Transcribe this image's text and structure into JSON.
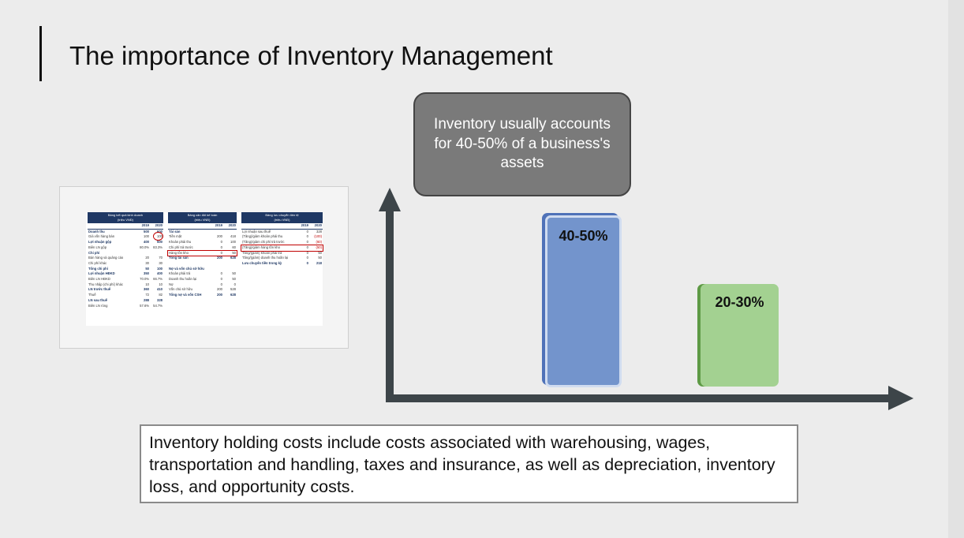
{
  "slide": {
    "title": "The importance of Inventory Management",
    "callout": "Inventory usually accounts for 40-50% of a business's assets",
    "bars": [
      {
        "label": "40-50%",
        "color": "#7394cc"
      },
      {
        "label": "20-30%",
        "color": "#a3d191"
      }
    ],
    "note": "Inventory holding costs include costs associated with warehousing, wages, transportation and handling, taxes and insurance, as well as depreciation, inventory loss, and opportunity costs."
  },
  "spreadsheet": {
    "income": {
      "title": "Bảng kết quả kinh doanh",
      "unit": "(triệu VNĐ)",
      "years": [
        "2019",
        "2020"
      ],
      "rows": [
        {
          "label": "Doanh thu",
          "a": "500",
          "b": "600",
          "bold": true
        },
        {
          "label": "Giá vốn hàng bán",
          "a": "100",
          "b": "100"
        },
        {
          "label": "Lợi nhuận gộp",
          "a": "400",
          "b": "500",
          "bold": true
        },
        {
          "label": "Biên LN gộp",
          "a": "80.0%",
          "b": "83.3%"
        },
        {
          "label": "Chi phí",
          "a": "",
          "b": "",
          "bold": true
        },
        {
          "label": "Bán hàng và quảng cáo",
          "a": "20",
          "b": "70"
        },
        {
          "label": "Chi phí khác",
          "a": "30",
          "b": "30"
        },
        {
          "label": "Tổng chi phí",
          "a": "50",
          "b": "100",
          "bold": true
        },
        {
          "label": "Lợi nhuận HĐKD",
          "a": "350",
          "b": "400",
          "bold": true
        },
        {
          "label": "Biên LN HĐKD",
          "a": "70.0%",
          "b": "66.7%"
        },
        {
          "label": "Thu nhập (chi phí) khác",
          "a": "10",
          "b": "10"
        },
        {
          "label": "LN trước thuế",
          "a": "360",
          "b": "410",
          "bold": true
        },
        {
          "label": "Thuế",
          "a": "72",
          "b": "82"
        },
        {
          "label": "LN sau thuế",
          "a": "288",
          "b": "328",
          "bold": true
        },
        {
          "label": "Biên LN ròng",
          "a": "57.6%",
          "b": "54.7%"
        }
      ]
    },
    "balance": {
      "title": "Bảng cân đối kế toán",
      "unit": "(triệu VNĐ)",
      "years": [
        "2019",
        "2020"
      ],
      "rows": [
        {
          "label": "Tài sản",
          "a": "",
          "b": "",
          "bold": true
        },
        {
          "label": "Tiền mặt",
          "a": "200",
          "b": "418"
        },
        {
          "label": "Khoản phải thu",
          "a": "0",
          "b": "100"
        },
        {
          "label": "Chi phí trả trước",
          "a": "0",
          "b": "60"
        },
        {
          "label": "Hàng tồn kho",
          "a": "0",
          "b": "50",
          "hl": true
        },
        {
          "label": "Tổng tài sản",
          "a": "200",
          "b": "628",
          "bold": true
        },
        {
          "label": "",
          "a": "",
          "b": ""
        },
        {
          "label": "Nợ và vốn chủ sở hữu",
          "a": "",
          "b": "",
          "bold": true
        },
        {
          "label": "Khoản phải trả",
          "a": "0",
          "b": "50"
        },
        {
          "label": "Doanh thu hoãn lại",
          "a": "0",
          "b": "50"
        },
        {
          "label": "Nợ",
          "a": "0",
          "b": "0"
        },
        {
          "label": "Vốn chủ sở hữu",
          "a": "200",
          "b": "528"
        },
        {
          "label": "Tổng nợ và vốn CSH",
          "a": "200",
          "b": "628",
          "bold": true
        }
      ]
    },
    "cashflow": {
      "title": "Bảng lưu chuyển tiền tệ",
      "unit": "(triệu VNĐ)",
      "years": [
        "2019",
        "2020"
      ],
      "rows": [
        {
          "label": "Lợi nhuận sau thuế",
          "a": "0",
          "b": "328"
        },
        {
          "label": "(Tăng)/giảm khoản phải thu",
          "a": "0",
          "b": "(100)",
          "red": true
        },
        {
          "label": "(Tăng)/giảm chi phí trả trước",
          "a": "0",
          "b": "(60)",
          "red": true
        },
        {
          "label": "(Tăng)/giảm hàng tồn kho",
          "a": "0",
          "b": "(50)",
          "red": true,
          "hl": true
        },
        {
          "label": "Tăng/(giảm) khoản phải trả",
          "a": "0",
          "b": "50"
        },
        {
          "label": "Tăng/(giảm) doanh thu hoãn lại",
          "a": "0",
          "b": "50"
        },
        {
          "label": "Lưu chuyển tiền trong kỳ",
          "a": "0",
          "b": "218",
          "bold": true
        }
      ]
    }
  }
}
